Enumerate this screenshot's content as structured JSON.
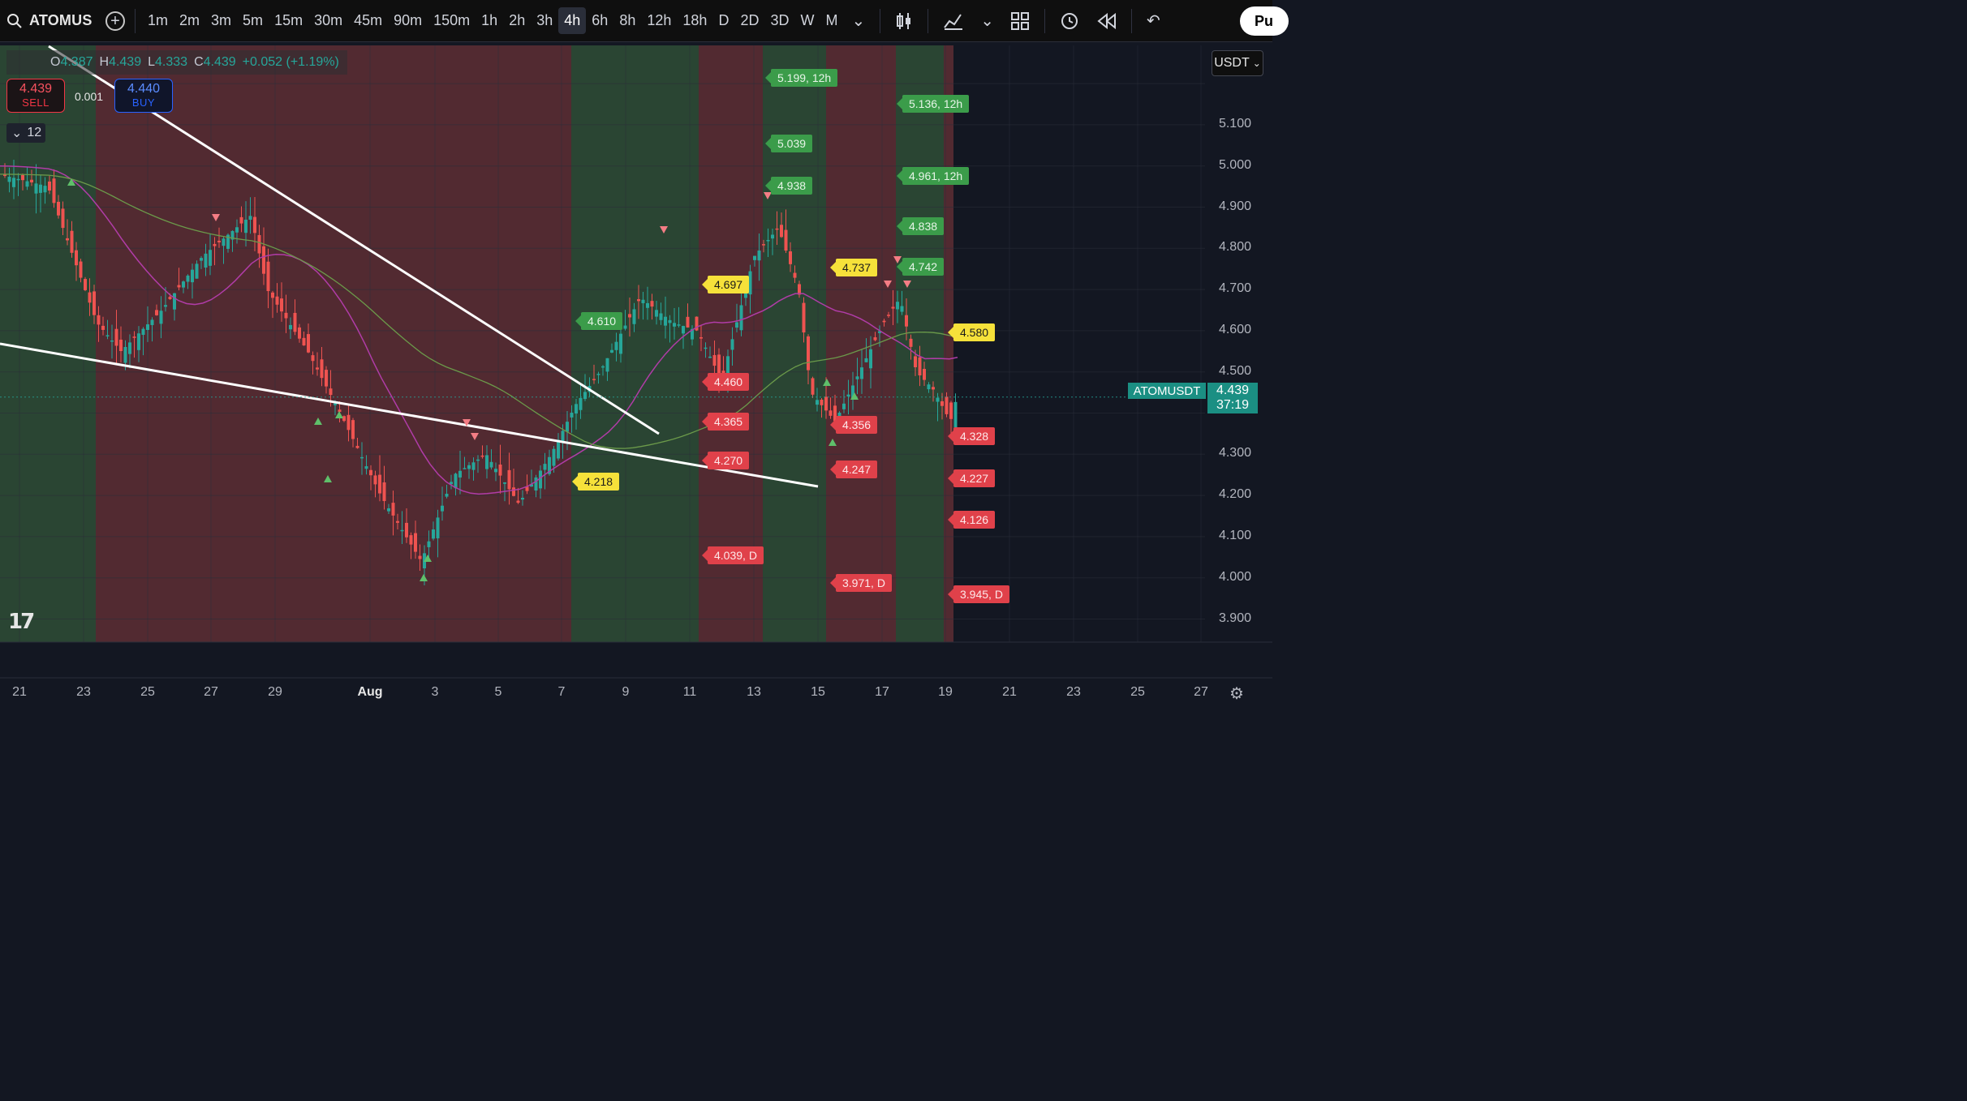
{
  "toolbar": {
    "symbol": "ATOMUS",
    "intervals": [
      "1m",
      "2m",
      "3m",
      "5m",
      "15m",
      "30m",
      "45m",
      "90m",
      "150m",
      "1h",
      "2h",
      "3h",
      "4h",
      "6h",
      "8h",
      "12h",
      "18h",
      "D",
      "2D",
      "3D",
      "W",
      "M"
    ],
    "active_interval": "4h",
    "publish_label": "Pu"
  },
  "legend": {
    "o_label": "O",
    "o_value": "4.387",
    "h_label": "H",
    "h_value": "4.439",
    "l_label": "L",
    "l_value": "4.333",
    "c_label": "C",
    "c_value": "4.439",
    "change": "+0.052 (+1.19%)"
  },
  "trade": {
    "sell_price": "4.439",
    "sell_label": "SELL",
    "spread": "0.001",
    "buy_price": "4.440",
    "buy_label": "BUY"
  },
  "indicators_collapsed": "12",
  "currency": "USDT",
  "last_price": {
    "symbol": "ATOMUSDT",
    "price": "4.439",
    "countdown": "37:19"
  },
  "price_axis": [
    "5.100",
    "5.000",
    "4.900",
    "4.800",
    "4.700",
    "4.600",
    "4.500",
    "4.300",
    "4.200",
    "4.100",
    "4.000",
    "3.900"
  ],
  "time_axis": [
    "21",
    "23",
    "25",
    "27",
    "29",
    "Aug",
    "3",
    "5",
    "7",
    "9",
    "11",
    "13",
    "15",
    "17",
    "19",
    "21",
    "23",
    "25",
    "27"
  ],
  "level_labels": [
    {
      "text": "5.199, 12h",
      "color": "green"
    },
    {
      "text": "5.136, 12h",
      "color": "green"
    },
    {
      "text": "5.039",
      "color": "green"
    },
    {
      "text": "4.961, 12h",
      "color": "green"
    },
    {
      "text": "4.938",
      "color": "green"
    },
    {
      "text": "4.838",
      "color": "green"
    },
    {
      "text": "4.742",
      "color": "green"
    },
    {
      "text": "4.737",
      "color": "yellow"
    },
    {
      "text": "4.697",
      "color": "yellow"
    },
    {
      "text": "4.610",
      "color": "green"
    },
    {
      "text": "4.580",
      "color": "yellow"
    },
    {
      "text": "4.460",
      "color": "red"
    },
    {
      "text": "4.365",
      "color": "red"
    },
    {
      "text": "4.356",
      "color": "red"
    },
    {
      "text": "4.328",
      "color": "red"
    },
    {
      "text": "4.270",
      "color": "red"
    },
    {
      "text": "4.247",
      "color": "red"
    },
    {
      "text": "4.227",
      "color": "red"
    },
    {
      "text": "4.218",
      "color": "yellow"
    },
    {
      "text": "4.126",
      "color": "red"
    },
    {
      "text": "4.039, D",
      "color": "red"
    },
    {
      "text": "3.971, D",
      "color": "red"
    },
    {
      "text": "3.945, D",
      "color": "red"
    }
  ],
  "colors": {
    "up": "#26a69a",
    "down": "#ef5350",
    "bullish_zone": "#2d4a35",
    "bearish_zone": "#5a2c33",
    "background": "#131722",
    "ma_purple": "#b03ca7",
    "ma_green": "#6b9a4a"
  },
  "chart_data": {
    "type": "candlestick",
    "symbol": "ATOMUSDT",
    "interval": "4h",
    "y_range": [
      3.86,
      5.2
    ],
    "approx_closes": [
      {
        "date": "Jul 22",
        "close": 4.95
      },
      {
        "date": "Jul 24",
        "close": 4.62
      },
      {
        "date": "Jul 26",
        "close": 4.72
      },
      {
        "date": "Jul 28",
        "close": 4.85
      },
      {
        "date": "Jul 29",
        "close": 4.75
      },
      {
        "date": "Jul 31",
        "close": 4.48
      },
      {
        "date": "Aug 2",
        "close": 4.15
      },
      {
        "date": "Aug 3",
        "close": 4.05
      },
      {
        "date": "Aug 5",
        "close": 4.3
      },
      {
        "date": "Aug 6",
        "close": 4.18
      },
      {
        "date": "Aug 7",
        "close": 4.38
      },
      {
        "date": "Aug 9",
        "close": 4.7
      },
      {
        "date": "Aug 11",
        "close": 4.55
      },
      {
        "date": "Aug 13",
        "close": 4.85
      },
      {
        "date": "Aug 14",
        "close": 4.8
      },
      {
        "date": "Aug 15",
        "close": 4.4
      },
      {
        "date": "Aug 16",
        "close": 4.5
      },
      {
        "date": "Aug 17",
        "close": 4.65
      },
      {
        "date": "Aug 18",
        "close": 4.48
      },
      {
        "date": "Aug 19",
        "close": 4.439
      }
    ]
  }
}
